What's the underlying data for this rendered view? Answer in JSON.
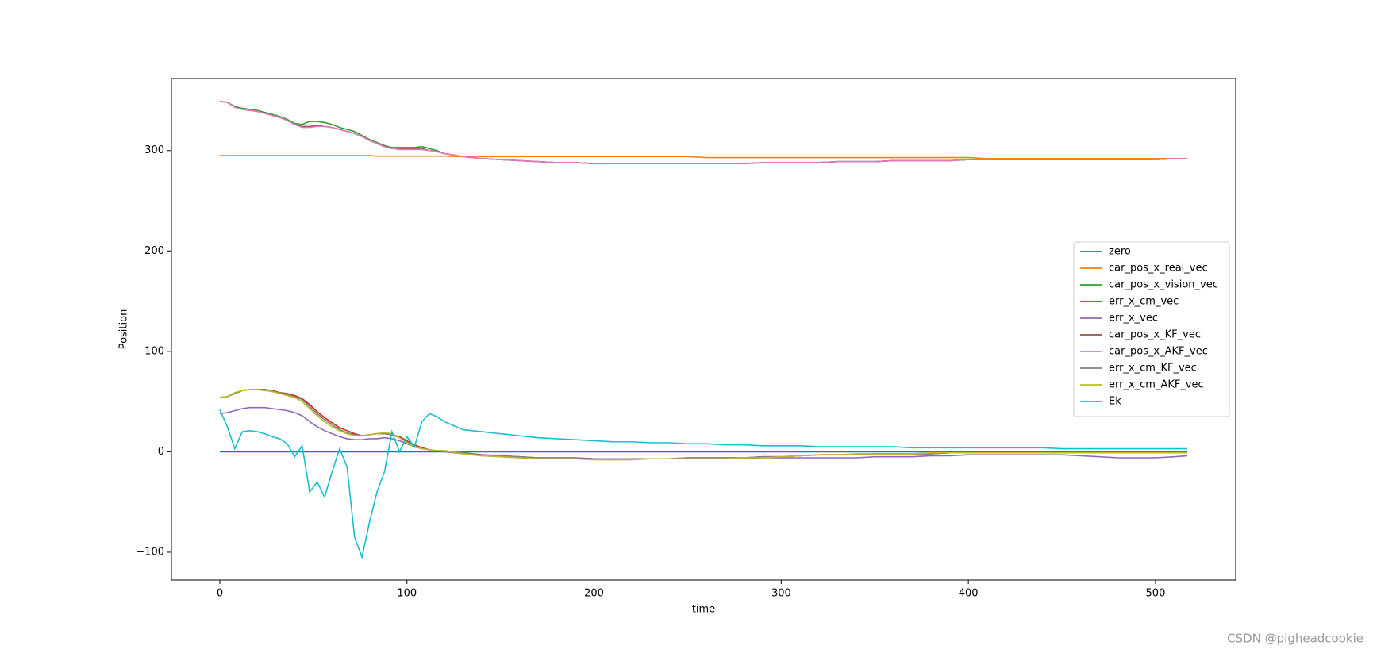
{
  "chart_data": {
    "type": "line",
    "xlabel": "time",
    "ylabel": "Position",
    "x": [
      0,
      4,
      8,
      12,
      16,
      20,
      24,
      28,
      32,
      36,
      40,
      44,
      48,
      52,
      56,
      60,
      64,
      68,
      72,
      76,
      80,
      84,
      88,
      92,
      96,
      100,
      104,
      108,
      112,
      116,
      120,
      130,
      140,
      150,
      160,
      170,
      180,
      190,
      200,
      210,
      220,
      230,
      240,
      250,
      260,
      270,
      280,
      290,
      300,
      310,
      320,
      330,
      340,
      350,
      360,
      370,
      380,
      390,
      400,
      410,
      420,
      430,
      440,
      450,
      460,
      470,
      480,
      490,
      500,
      510,
      517
    ],
    "xlim": [
      -25.85,
      542.85
    ],
    "xticks": [
      0,
      100,
      200,
      300,
      400,
      500
    ],
    "ylim": [
      -127.7,
      371.7
    ],
    "yticks": [
      {
        "value": -100,
        "label": "−100"
      },
      0,
      100,
      200,
      300
    ],
    "legend": "center right",
    "series": [
      {
        "name": "zero",
        "color": "#1f77b4",
        "values": [
          0,
          0,
          0,
          0,
          0,
          0,
          0,
          0,
          0,
          0,
          0,
          0,
          0,
          0,
          0,
          0,
          0,
          0,
          0,
          0,
          0,
          0,
          0,
          0,
          0,
          0,
          0,
          0,
          0,
          0,
          0,
          0,
          0,
          0,
          0,
          0,
          0,
          0,
          0,
          0,
          0,
          0,
          0,
          0,
          0,
          0,
          0,
          0,
          0,
          0,
          0,
          0,
          0,
          0,
          0,
          0,
          0,
          0,
          0,
          0,
          0,
          0,
          0,
          0,
          0,
          0,
          0,
          0,
          0,
          0,
          0
        ]
      },
      {
        "name": "car_pos_x_real_vec",
        "color": "#ff7f0e",
        "values": [
          295,
          295,
          295,
          295,
          295,
          295,
          295,
          295,
          295,
          295,
          295,
          295,
          295,
          295,
          295,
          295,
          295,
          295,
          295,
          295,
          295,
          294.5,
          294.5,
          294.5,
          294.5,
          294.5,
          294.5,
          294.5,
          294.5,
          294.5,
          294.5,
          294,
          294,
          294,
          294,
          294,
          294,
          294,
          294,
          294,
          294,
          294,
          294,
          294,
          293,
          293,
          293,
          293,
          293,
          293,
          293,
          293,
          293,
          293,
          293,
          293,
          293,
          293,
          293,
          292,
          292,
          292,
          292,
          292,
          292,
          292,
          292,
          292,
          292,
          292,
          292
        ]
      },
      {
        "name": "car_pos_x_vision_vec",
        "color": "#2ca02c",
        "values": [
          349,
          348,
          344,
          342,
          341,
          340,
          338,
          336,
          334,
          331,
          327,
          326,
          329,
          329,
          328,
          326,
          323,
          321,
          319,
          315,
          311,
          308,
          305,
          303,
          303,
          303,
          303,
          304,
          302,
          300,
          297,
          294,
          292,
          291,
          290,
          289,
          288,
          288,
          287,
          287,
          287,
          287,
          287,
          287,
          287,
          287,
          287,
          288,
          288,
          288,
          288,
          289,
          289,
          289,
          290,
          290,
          290,
          290,
          291,
          291,
          291,
          291,
          291,
          291,
          291,
          291,
          291,
          291,
          291,
          292,
          292
        ]
      },
      {
        "name": "err_x_cm_vec",
        "color": "#d62728",
        "values": [
          54,
          55,
          58,
          61,
          62,
          62,
          62,
          61,
          59,
          58,
          56,
          53,
          47,
          40,
          34,
          29,
          24,
          21,
          18,
          16,
          17,
          18,
          18,
          17,
          15,
          11,
          7,
          4,
          2,
          1,
          1,
          -1,
          -3,
          -4,
          -5,
          -6,
          -6,
          -6,
          -7,
          -7,
          -7,
          -7,
          -7,
          -6,
          -6,
          -6,
          -6,
          -5,
          -5,
          -4,
          -3,
          -3,
          -3,
          -2,
          -2,
          -2,
          -2,
          -1,
          -1,
          -1,
          -1,
          -1,
          -1,
          -1,
          -1,
          -1,
          -1,
          -1,
          -1,
          -1,
          -1
        ]
      },
      {
        "name": "err_x_vec",
        "color": "#9467bd",
        "values": [
          38,
          39,
          41,
          43,
          44,
          44,
          44,
          43,
          42,
          41,
          39,
          36,
          30,
          25,
          21,
          18,
          15,
          13,
          12,
          12,
          13,
          13,
          14,
          13,
          11,
          8,
          5,
          3,
          2,
          1,
          0,
          -2,
          -4,
          -5,
          -6,
          -6,
          -7,
          -7,
          -7,
          -8,
          -7,
          -7,
          -7,
          -7,
          -7,
          -7,
          -7,
          -6,
          -6,
          -6,
          -6,
          -6,
          -6,
          -5,
          -5,
          -5,
          -4,
          -4,
          -3,
          -3,
          -3,
          -3,
          -3,
          -3,
          -4,
          -5,
          -6,
          -6,
          -6,
          -5,
          -4
        ]
      },
      {
        "name": "car_pos_x_KF_vec",
        "color": "#8c564b",
        "values": [
          349,
          348,
          343,
          341,
          340,
          339,
          337,
          335,
          333,
          330,
          326,
          324,
          324,
          325,
          324,
          323,
          321,
          319,
          317,
          314,
          310,
          307,
          304,
          302,
          302,
          302,
          302,
          302,
          300,
          299,
          297,
          294,
          292,
          291,
          290,
          289,
          288,
          288,
          287,
          287,
          287,
          287,
          287,
          287,
          287,
          287,
          287,
          288,
          288,
          288,
          288,
          289,
          289,
          289,
          290,
          290,
          290,
          290,
          291,
          291,
          291,
          291,
          291,
          291,
          291,
          291,
          291,
          291,
          291,
          292,
          292
        ]
      },
      {
        "name": "car_pos_x_AKF_vec",
        "color": "#e377c2",
        "values": [
          349,
          348,
          343,
          341,
          340,
          339,
          337,
          335,
          333,
          330,
          326,
          323,
          323,
          324,
          324,
          323,
          321,
          319,
          317,
          314,
          310,
          307,
          304,
          302,
          301,
          301,
          301,
          301,
          300,
          299,
          297,
          294,
          292,
          291,
          290,
          289,
          288,
          288,
          287,
          287,
          287,
          287,
          287,
          287,
          287,
          287,
          287,
          288,
          288,
          288,
          288,
          289,
          289,
          289,
          290,
          290,
          290,
          290,
          291,
          291,
          291,
          291,
          291,
          291,
          291,
          291,
          291,
          291,
          291,
          292,
          292
        ]
      },
      {
        "name": "err_x_cm_KF_vec",
        "color": "#7f7f7f",
        "values": [
          54,
          55,
          58,
          61,
          62,
          62,
          62,
          60,
          59,
          57,
          55,
          52,
          45,
          38,
          32,
          27,
          22,
          19,
          17,
          16,
          17,
          18,
          18,
          17,
          14,
          10,
          6,
          3,
          2,
          1,
          1,
          -1,
          -3,
          -4,
          -5,
          -6,
          -6,
          -6,
          -7,
          -7,
          -7,
          -7,
          -7,
          -6,
          -6,
          -6,
          -6,
          -5,
          -5,
          -4,
          -3,
          -3,
          -3,
          -2,
          -2,
          -2,
          -2,
          -1,
          -1,
          -1,
          -1,
          -1,
          -1,
          -1,
          -1,
          -1,
          -1,
          -1,
          -1,
          -1,
          -1
        ]
      },
      {
        "name": "err_x_cm_AKF_vec",
        "color": "#bcbd22",
        "values": [
          54,
          55,
          59,
          61,
          62,
          62,
          61,
          60,
          58,
          56,
          54,
          50,
          43,
          36,
          30,
          25,
          21,
          18,
          16,
          16,
          17,
          18,
          19,
          18,
          14,
          9,
          5,
          3,
          2,
          1,
          1,
          -2,
          -4,
          -5,
          -6,
          -7,
          -7,
          -7,
          -8,
          -8,
          -8,
          -7,
          -7,
          -7,
          -7,
          -7,
          -6,
          -6,
          -5,
          -4,
          -3,
          -3,
          -2,
          -2,
          -2,
          -2,
          -1,
          -1,
          -1,
          -1,
          -1,
          -1,
          -1,
          -1,
          -1,
          -1,
          -1,
          -1,
          -1,
          -1,
          -1
        ]
      },
      {
        "name": "Ek",
        "color": "#17becf",
        "values": [
          42,
          25,
          3,
          20,
          21,
          20,
          18,
          15,
          13,
          8,
          -5,
          6,
          -40,
          -30,
          -45,
          -20,
          3,
          -15,
          -85,
          -105,
          -70,
          -40,
          -20,
          20,
          0,
          15,
          5,
          30,
          38,
          35,
          30,
          22,
          20,
          18,
          16,
          14,
          13,
          12,
          11,
          10,
          10,
          9,
          9,
          8,
          8,
          7,
          7,
          6,
          6,
          6,
          5,
          5,
          5,
          5,
          5,
          4,
          4,
          4,
          4,
          4,
          4,
          4,
          4,
          3,
          3,
          3,
          3,
          3,
          3,
          3,
          3
        ]
      }
    ]
  },
  "watermark": "CSDN @pigheadcookie"
}
